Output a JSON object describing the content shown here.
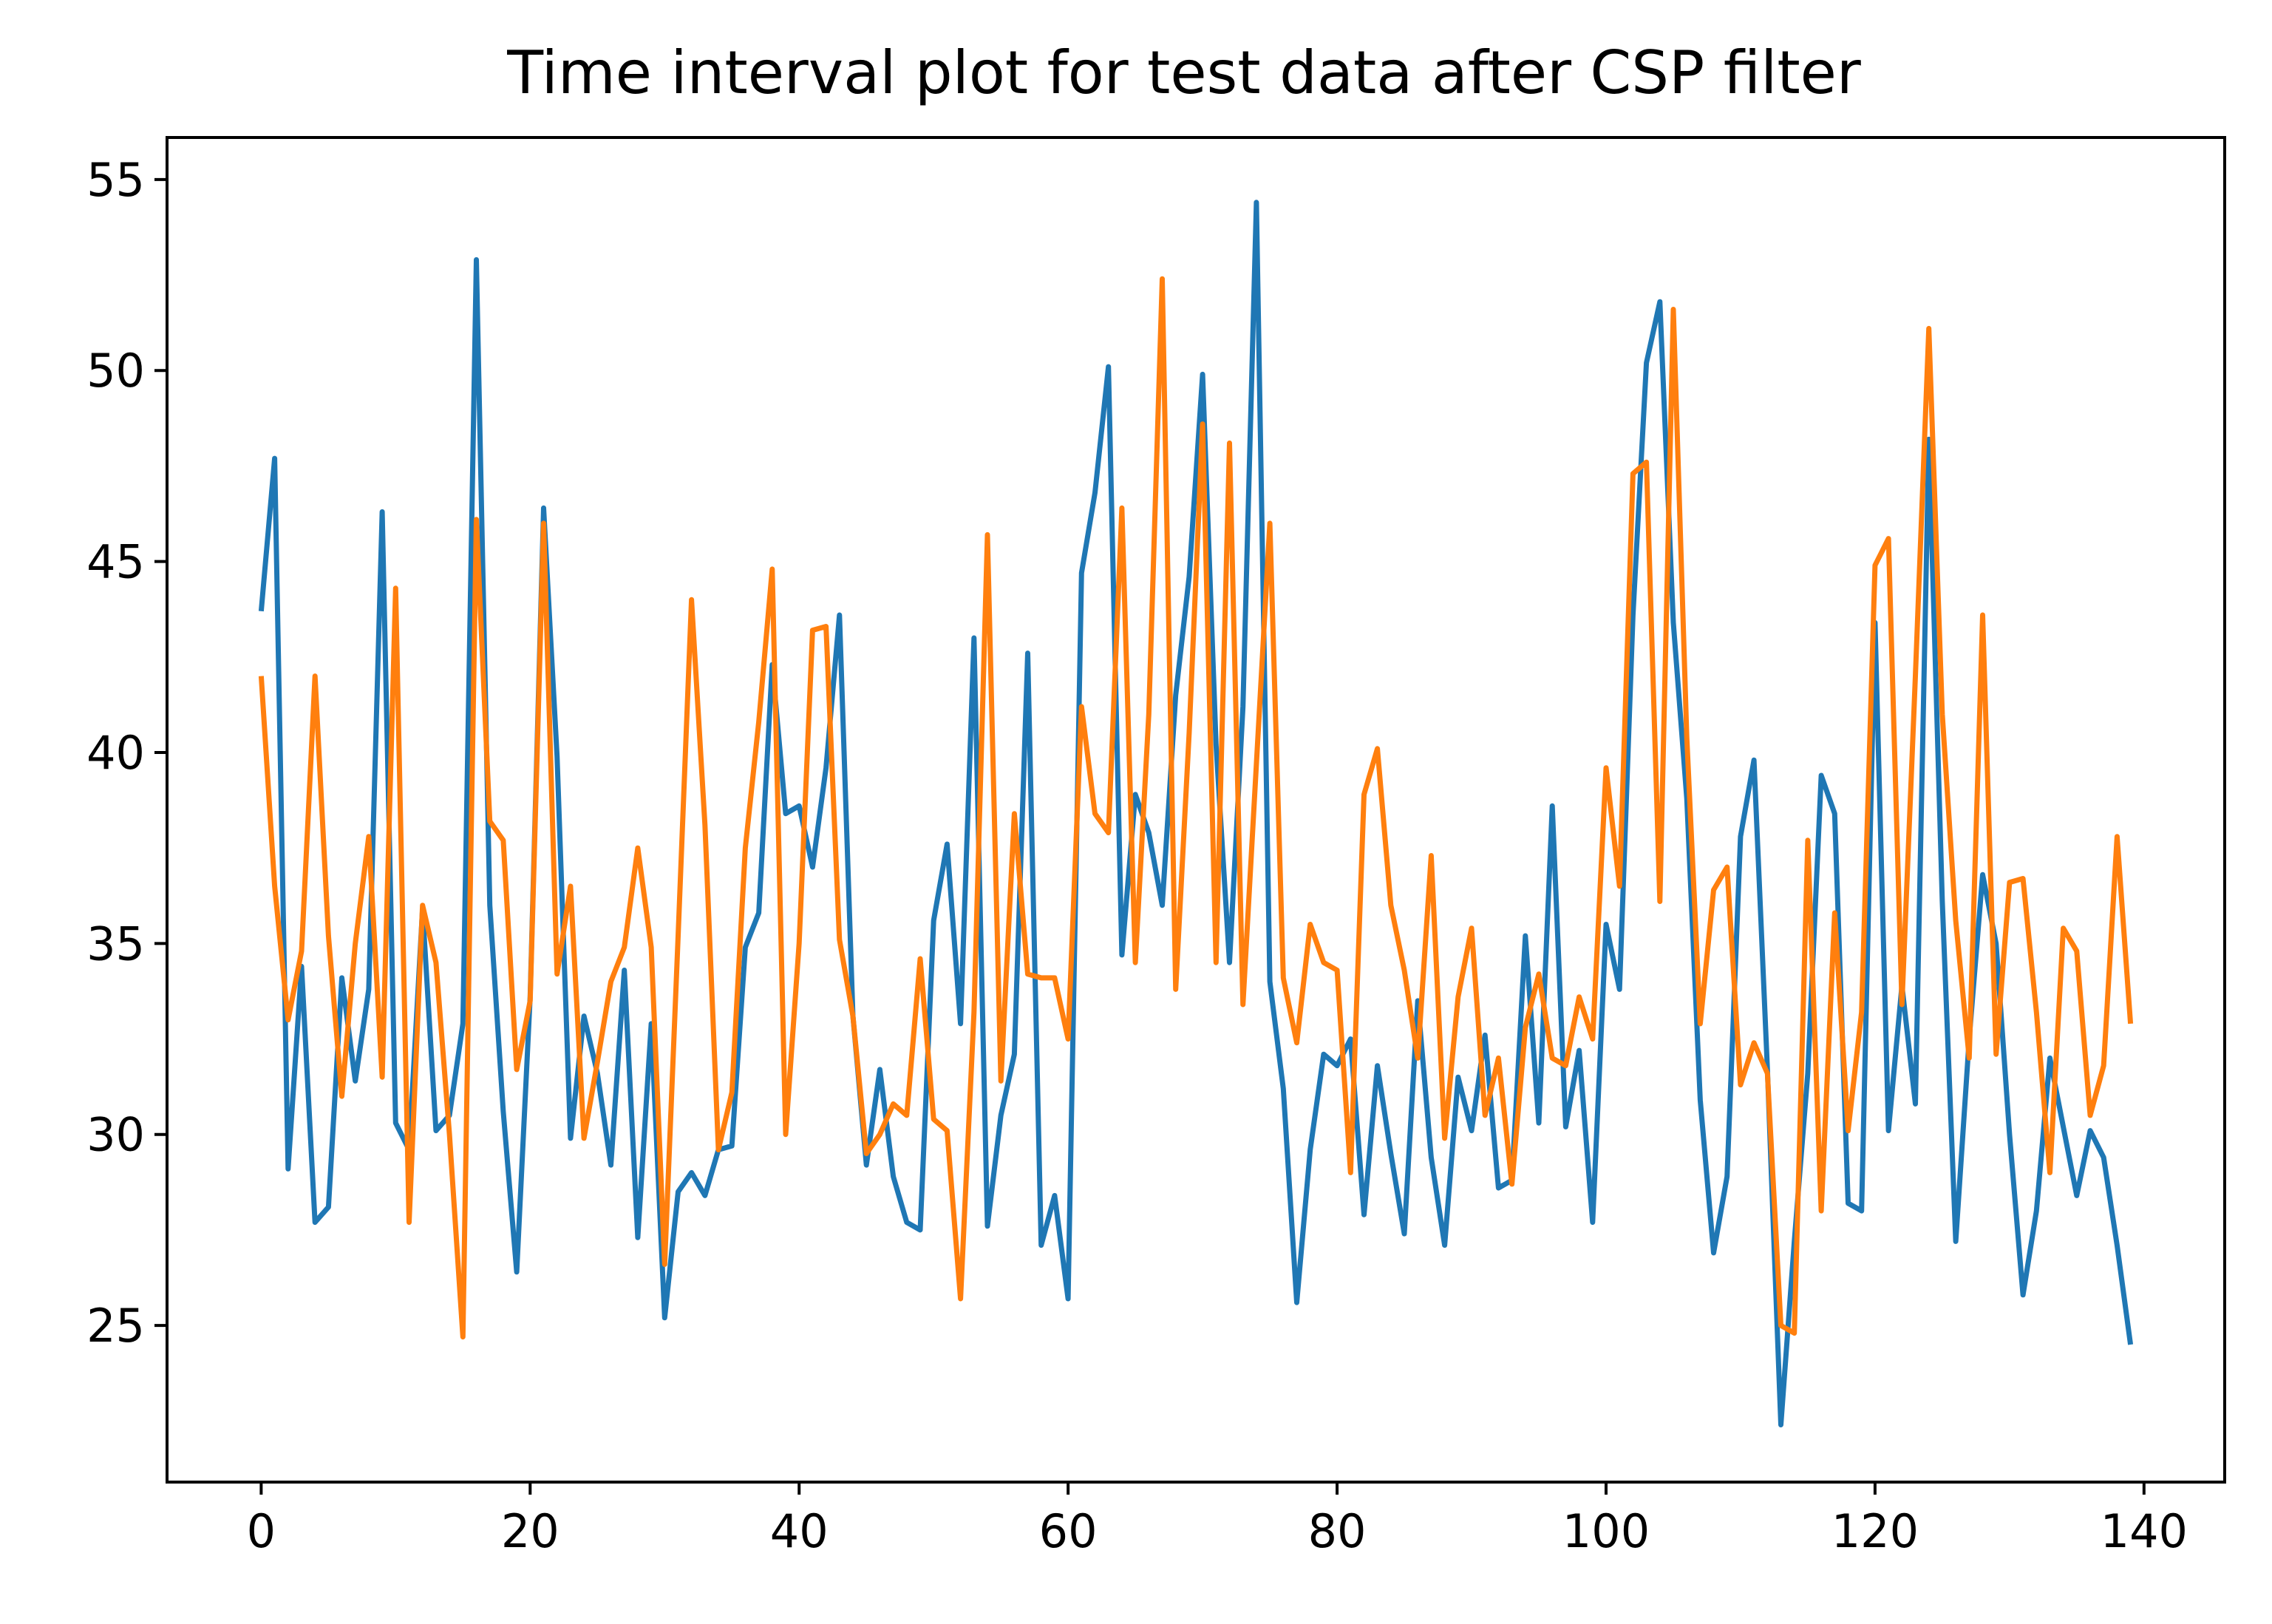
{
  "chart_data": {
    "type": "line",
    "title": "Time interval plot for test data after CSP filter",
    "xlabel": "",
    "ylabel": "",
    "xlim": [
      -7,
      146
    ],
    "ylim": [
      20.9,
      56.1
    ],
    "grid": false,
    "legend": "none",
    "x_ticks": [
      0,
      20,
      40,
      60,
      80,
      100,
      120,
      140
    ],
    "y_ticks": [
      25,
      30,
      35,
      40,
      45,
      50,
      55
    ],
    "series": [
      {
        "color": "#1f77b4",
        "x_start": 0,
        "values": [
          43.7,
          47.7,
          29.1,
          34.4,
          27.7,
          28.1,
          34.1,
          31.4,
          33.8,
          46.3,
          30.3,
          29.6,
          35.9,
          30.1,
          30.5,
          32.9,
          52.9,
          36.0,
          30.6,
          26.4,
          33.6,
          46.4,
          39.9,
          29.9,
          33.1,
          31.6,
          29.2,
          34.3,
          27.3,
          32.9,
          25.2,
          28.5,
          29.0,
          28.4,
          29.6,
          29.7,
          34.9,
          35.8,
          42.3,
          38.4,
          38.6,
          37.0,
          39.6,
          43.6,
          33.1,
          29.2,
          31.7,
          28.9,
          27.7,
          27.5,
          35.6,
          37.6,
          32.9,
          43.0,
          27.6,
          30.5,
          32.1,
          42.6,
          27.1,
          28.4,
          25.7,
          44.7,
          46.8,
          50.1,
          34.7,
          38.9,
          37.9,
          36.0,
          41.5,
          44.6,
          49.9,
          40.2,
          34.5,
          41.2,
          54.4,
          34.0,
          31.2,
          25.6,
          29.6,
          32.1,
          31.8,
          32.5,
          27.9,
          31.8,
          29.5,
          27.4,
          33.5,
          29.4,
          27.1,
          31.5,
          30.1,
          32.6,
          28.6,
          28.8,
          35.2,
          30.3,
          38.6,
          30.2,
          32.2,
          27.7,
          35.5,
          33.8,
          43.6,
          50.2,
          51.8,
          43.4,
          38.8,
          30.9,
          26.9,
          28.9,
          37.8,
          39.8,
          31.7,
          22.4,
          27.2,
          31.6,
          39.4,
          38.4,
          28.2,
          28.0,
          43.4,
          30.1,
          33.9,
          30.8,
          48.2,
          36.1,
          27.2,
          32.5,
          36.8,
          35.0,
          30.0,
          25.8,
          28.0,
          32.0,
          30.2,
          28.4,
          30.1,
          29.4,
          27.1,
          24.5
        ]
      },
      {
        "color": "#ff7f0e",
        "x_start": 0,
        "values": [
          42.0,
          36.5,
          33.0,
          34.8,
          42.0,
          35.2,
          31.0,
          35.0,
          37.8,
          31.5,
          44.3,
          27.7,
          36.0,
          34.5,
          30.0,
          24.7,
          46.1,
          38.2,
          37.7,
          31.7,
          33.5,
          46.0,
          34.2,
          36.5,
          29.9,
          31.9,
          34.0,
          34.9,
          37.5,
          34.9,
          26.6,
          35.2,
          44.0,
          38.1,
          29.6,
          31.1,
          37.5,
          40.8,
          44.8,
          30.0,
          35.0,
          43.2,
          43.3,
          35.1,
          33.1,
          29.5,
          30.0,
          30.8,
          30.5,
          34.6,
          30.4,
          30.1,
          25.7,
          33.2,
          45.7,
          31.4,
          38.4,
          34.2,
          34.1,
          34.1,
          32.5,
          41.2,
          38.4,
          37.9,
          46.4,
          34.5,
          41.0,
          52.4,
          33.8,
          40.5,
          48.6,
          34.5,
          48.1,
          33.4,
          39.7,
          46.0,
          34.1,
          32.4,
          35.5,
          34.5,
          34.3,
          29.0,
          38.9,
          40.1,
          36.0,
          34.3,
          32.0,
          37.3,
          29.9,
          33.6,
          35.4,
          30.5,
          32.0,
          28.7,
          32.8,
          34.2,
          32.0,
          31.8,
          33.6,
          32.5,
          39.6,
          36.5,
          47.3,
          47.6,
          36.1,
          51.6,
          40.4,
          32.9,
          36.4,
          37.0,
          31.3,
          32.4,
          31.6,
          25.0,
          24.8,
          37.7,
          28.0,
          35.8,
          30.1,
          33.2,
          44.9,
          45.6,
          33.4,
          42.0,
          51.1,
          41.0,
          35.6,
          32.0,
          43.6,
          32.1,
          36.6,
          36.7,
          33.2,
          29.0,
          35.4,
          34.8,
          30.5,
          31.8,
          37.8,
          32.9
        ]
      }
    ]
  }
}
